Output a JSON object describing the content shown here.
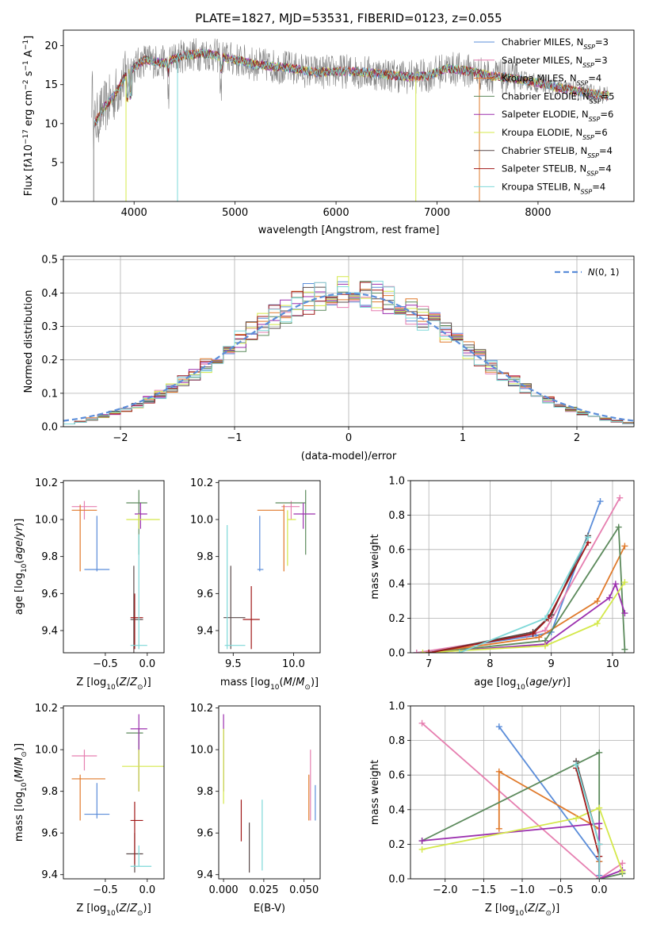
{
  "title": "PLATE=1827, MJD=53531, FIBERID=0123, z=0.055",
  "colors": {
    "Chabrier MILES": "#5b8dd9",
    "Salpeter MILES": "#e67fb0",
    "Kroupa MILES": "#e07a2b",
    "Chabrier ELODIE": "#5c8a5c",
    "Salpeter ELODIE": "#9b2fae",
    "Kroupa ELODIE": "#d4e84a",
    "Chabrier STELIB": "#5a4a4a",
    "Salpeter STELIB": "#a01818",
    "Kroupa STELIB": "#7ed8d8",
    "data": "#808080",
    "normal": "#5b8dd9"
  },
  "chart_data": [
    {
      "id": "spectrum",
      "type": "line",
      "xlabel": "wavelength [Angstrom, rest frame]",
      "ylabel": "Flux [f",
      "xlim": [
        3300,
        8950
      ],
      "ylim": [
        0,
        22
      ],
      "xticks": [
        4000,
        5000,
        6000,
        7000,
        8000
      ],
      "yticks": [
        0,
        5,
        10,
        15,
        20
      ],
      "legend_position": "right",
      "legend": [
        {
          "name": "Chabrier MILES, N",
          "n": "=3"
        },
        {
          "name": "Salpeter MILES, N",
          "n": "=3"
        },
        {
          "name": "Kroupa MILES, N",
          "n": "=4"
        },
        {
          "name": "Chabrier ELODIE, N",
          "n": "=5"
        },
        {
          "name": "Salpeter ELODIE, N",
          "n": "=6"
        },
        {
          "name": "Kroupa ELODIE, N",
          "n": "=6"
        },
        {
          "name": "Chabrier STELIB, N",
          "n": "=4"
        },
        {
          "name": "Salpeter STELIB, N",
          "n": "=4"
        },
        {
          "name": "Kroupa STELIB, N",
          "n": "=4"
        }
      ],
      "model_continuum": [
        [
          3600,
          9.8
        ],
        [
          3700,
          12
        ],
        [
          3800,
          13.5
        ],
        [
          3900,
          15.8
        ],
        [
          4000,
          17.2
        ],
        [
          4100,
          18.2
        ],
        [
          4300,
          17.8
        ],
        [
          4500,
          18.8
        ],
        [
          4700,
          19
        ],
        [
          5000,
          18.2
        ],
        [
          5200,
          17.6
        ],
        [
          5500,
          17.2
        ],
        [
          5800,
          16.6
        ],
        [
          6000,
          16.7
        ],
        [
          6200,
          16.7
        ],
        [
          6500,
          16.3
        ],
        [
          6700,
          16.0
        ],
        [
          6900,
          16.1
        ],
        [
          7100,
          17.1
        ],
        [
          7300,
          16.8
        ],
        [
          7500,
          16.2
        ],
        [
          7700,
          15.9
        ],
        [
          8000,
          15.2
        ],
        [
          8300,
          14.4
        ],
        [
          8500,
          13.9
        ],
        [
          8700,
          13.6
        ]
      ]
    },
    {
      "id": "residuals",
      "type": "line",
      "xlabel": "(data-model)/error",
      "ylabel": "Normed distribution",
      "xlim": [
        -2.5,
        2.5
      ],
      "ylim": [
        0,
        0.51
      ],
      "xticks": [
        -2,
        -1,
        0,
        1,
        2
      ],
      "yticks": [
        0.0,
        0.1,
        0.2,
        0.3,
        0.4,
        0.5
      ],
      "legend": "N(0,1)",
      "grid": true
    },
    {
      "id": "age_vs_Z",
      "type": "scatter",
      "xlabel": "Z [log",
      "ylabel": "age  [log",
      "xlim": [
        -1.0,
        0.2
      ],
      "ylim": [
        9.28,
        10.21
      ],
      "xticks": [
        -0.5,
        0.0
      ],
      "yticks": [
        9.4,
        9.6,
        9.8,
        10.0,
        10.2
      ],
      "points": [
        {
          "model": "Chabrier MILES",
          "x": -0.6,
          "y": 9.73,
          "ex": [
            -0.75,
            -0.45
          ],
          "ey": [
            9.72,
            10.02
          ]
        },
        {
          "model": "Salpeter MILES",
          "x": -0.75,
          "y": 10.07,
          "ex": [
            -0.9,
            -0.6
          ],
          "ey": [
            10.0,
            10.1
          ]
        },
        {
          "model": "Kroupa MILES",
          "x": -0.8,
          "y": 10.05,
          "ex": [
            -0.9,
            -0.6
          ],
          "ey": [
            9.72,
            10.08
          ]
        },
        {
          "model": "Chabrier ELODIE",
          "x": -0.1,
          "y": 10.09,
          "ex": [
            -0.25,
            -0.0
          ],
          "ey": [
            9.81,
            10.16
          ]
        },
        {
          "model": "Salpeter ELODIE",
          "x": -0.08,
          "y": 10.03,
          "ex": [
            -0.15,
            0.0
          ],
          "ey": [
            9.95,
            10.09
          ]
        },
        {
          "model": "Kroupa ELODIE",
          "x": -0.1,
          "y": 10.0,
          "ex": [
            -0.25,
            0.15
          ],
          "ey": [
            9.95,
            10.03
          ]
        },
        {
          "model": "Chabrier STELIB",
          "x": -0.16,
          "y": 9.46,
          "ex": [
            -0.2,
            -0.05
          ],
          "ey": [
            9.28,
            9.75
          ]
        },
        {
          "model": "Salpeter STELIB",
          "x": -0.15,
          "y": 9.47,
          "ex": [
            -0.2,
            -0.05
          ],
          "ey": [
            9.3,
            9.6
          ]
        },
        {
          "model": "Kroupa STELIB",
          "x": -0.1,
          "y": 9.32,
          "ex": [
            -0.2,
            0.0
          ],
          "ey": [
            9.3,
            9.92
          ]
        }
      ]
    },
    {
      "id": "age_vs_mass",
      "type": "scatter",
      "xlabel": "mass [log",
      "ylabel": "",
      "xlim": [
        9.38,
        10.22
      ],
      "ylim": [
        9.28,
        10.21
      ],
      "xticks": [
        9.5,
        10.0
      ],
      "yticks": [
        9.4,
        9.6,
        9.8,
        10.0,
        10.2
      ],
      "points": [
        {
          "model": "Chabrier MILES",
          "x": 9.72,
          "y": 9.73,
          "ex": [
            9.7,
            9.75
          ],
          "ey": [
            9.72,
            10.02
          ]
        },
        {
          "model": "Salpeter MILES",
          "x": 9.98,
          "y": 10.07,
          "ex": [
            9.9,
            10.05
          ],
          "ey": [
            10.0,
            10.1
          ]
        },
        {
          "model": "Kroupa MILES",
          "x": 9.92,
          "y": 10.05,
          "ex": [
            9.7,
            9.92
          ],
          "ey": [
            9.72,
            10.08
          ]
        },
        {
          "model": "Chabrier ELODIE",
          "x": 10.1,
          "y": 10.09,
          "ex": [
            9.85,
            10.1
          ],
          "ey": [
            9.81,
            10.16
          ]
        },
        {
          "model": "Salpeter ELODIE",
          "x": 10.08,
          "y": 10.03,
          "ex": [
            10.0,
            10.18
          ],
          "ey": [
            9.95,
            10.09
          ]
        },
        {
          "model": "Kroupa ELODIE",
          "x": 9.95,
          "y": 10.0,
          "ex": [
            9.95,
            10.02
          ],
          "ey": [
            9.75,
            10.05
          ]
        },
        {
          "model": "Chabrier STELIB",
          "x": 9.48,
          "y": 9.47,
          "ex": [
            9.42,
            9.6
          ],
          "ey": [
            9.3,
            9.75
          ]
        },
        {
          "model": "Salpeter STELIB",
          "x": 9.65,
          "y": 9.46,
          "ex": [
            9.58,
            9.72
          ],
          "ey": [
            9.3,
            9.64
          ]
        },
        {
          "model": "Kroupa STELIB",
          "x": 9.45,
          "y": 9.32,
          "ex": [
            9.43,
            9.6
          ],
          "ey": [
            9.3,
            9.97
          ]
        }
      ]
    },
    {
      "id": "weight_vs_age",
      "type": "line",
      "xlabel": "age  [log",
      "ylabel": "mass weight",
      "xlim": [
        6.7,
        10.35
      ],
      "ylim": [
        0,
        1.0
      ],
      "xticks": [
        7,
        8,
        9,
        10
      ],
      "yticks": [
        0.0,
        0.2,
        0.4,
        0.6,
        0.8,
        1.0
      ],
      "grid": true,
      "series": [
        {
          "name": "Chabrier MILES",
          "x": [
            6.8,
            8.75,
            9.0,
            9.8
          ],
          "y": [
            0.0,
            0.1,
            0.12,
            0.88
          ]
        },
        {
          "name": "Salpeter MILES",
          "x": [
            6.8,
            8.6,
            8.9,
            10.12
          ],
          "y": [
            0.0,
            0.1,
            0.13,
            0.9
          ]
        },
        {
          "name": "Kroupa MILES",
          "x": [
            7.0,
            8.8,
            9.75,
            10.2
          ],
          "y": [
            0.0,
            0.09,
            0.3,
            0.62
          ]
        },
        {
          "name": "Chabrier ELODIE",
          "x": [
            7.0,
            8.9,
            10.1,
            10.2
          ],
          "y": [
            0.0,
            0.07,
            0.73,
            0.02
          ]
        },
        {
          "name": "Salpeter ELODIE",
          "x": [
            7.0,
            8.9,
            9.95,
            10.05,
            10.2
          ],
          "y": [
            0.0,
            0.05,
            0.32,
            0.4,
            0.23
          ]
        },
        {
          "name": "Kroupa ELODIE",
          "x": [
            6.9,
            8.9,
            9.75,
            10.2
          ],
          "y": [
            0.0,
            0.04,
            0.17,
            0.41
          ]
        },
        {
          "name": "Chabrier STELIB",
          "x": [
            7.0,
            8.7,
            9.0,
            9.6
          ],
          "y": [
            0.0,
            0.12,
            0.22,
            0.68
          ]
        },
        {
          "name": "Salpeter STELIB",
          "x": [
            7.0,
            8.7,
            8.95,
            9.6
          ],
          "y": [
            0.0,
            0.11,
            0.2,
            0.64
          ]
        },
        {
          "name": "Kroupa STELIB",
          "x": [
            7.5,
            8.9,
            9.6
          ],
          "y": [
            0.0,
            0.2,
            0.67
          ]
        }
      ]
    },
    {
      "id": "mass_vs_Z",
      "type": "scatter",
      "xlabel": "Z [log",
      "ylabel": "mass [log",
      "xlim": [
        -1.0,
        0.2
      ],
      "ylim": [
        9.38,
        10.21
      ],
      "xticks": [
        -0.5,
        0.0
      ],
      "yticks": [
        9.4,
        9.6,
        9.8,
        10.0,
        10.2
      ],
      "points": [
        {
          "model": "Chabrier MILES",
          "x": -0.6,
          "y": 9.69,
          "ex": [
            -0.75,
            -0.45
          ],
          "ey": [
            9.67,
            9.84
          ]
        },
        {
          "model": "Salpeter MILES",
          "x": -0.75,
          "y": 9.97,
          "ex": [
            -0.9,
            -0.6
          ],
          "ey": [
            9.9,
            10.0
          ]
        },
        {
          "model": "Kroupa MILES",
          "x": -0.8,
          "y": 9.86,
          "ex": [
            -0.9,
            -0.5
          ],
          "ey": [
            9.66,
            9.88
          ]
        },
        {
          "model": "Chabrier ELODIE",
          "x": -0.1,
          "y": 10.08,
          "ex": [
            -0.25,
            -0.05
          ],
          "ey": [
            9.8,
            10.1
          ]
        },
        {
          "model": "Salpeter ELODIE",
          "x": -0.1,
          "y": 10.1,
          "ex": [
            -0.2,
            0.0
          ],
          "ey": [
            9.8,
            10.17
          ]
        },
        {
          "model": "Kroupa ELODIE",
          "x": -0.1,
          "y": 9.92,
          "ex": [
            -0.3,
            0.2
          ],
          "ey": [
            9.8,
            10.0
          ]
        },
        {
          "model": "Chabrier STELIB",
          "x": -0.15,
          "y": 9.5,
          "ex": [
            -0.25,
            -0.05
          ],
          "ey": [
            9.41,
            9.6
          ]
        },
        {
          "model": "Salpeter STELIB",
          "x": -0.15,
          "y": 9.66,
          "ex": [
            -0.2,
            -0.05
          ],
          "ey": [
            9.45,
            9.75
          ]
        },
        {
          "model": "Kroupa STELIB",
          "x": -0.1,
          "y": 9.44,
          "ex": [
            -0.2,
            0.05
          ],
          "ey": [
            9.44,
            9.54
          ]
        }
      ]
    },
    {
      "id": "mass_vs_EBV",
      "type": "scatter",
      "xlabel": "E(B-V)",
      "ylabel": "",
      "xlim": [
        -0.003,
        0.06
      ],
      "ylim": [
        9.38,
        10.21
      ],
      "xticks": [
        0.0,
        0.025,
        0.05
      ],
      "xticklabels": [
        "0.000",
        "0.025",
        "0.050"
      ],
      "yticks": [
        9.4,
        9.6,
        9.8,
        10.0,
        10.2
      ],
      "points": [
        {
          "model": "Chabrier MILES",
          "x": 0.057,
          "y": 9.74,
          "ey": [
            9.66,
            9.83
          ]
        },
        {
          "model": "Salpeter MILES",
          "x": 0.054,
          "y": 9.87,
          "ey": [
            9.66,
            10.0
          ]
        },
        {
          "model": "Kroupa MILES",
          "x": 0.053,
          "y": 9.75,
          "ey": [
            9.66,
            9.88
          ]
        },
        {
          "model": "Chabrier ELODIE",
          "x": 0.0,
          "y": 10.0,
          "ey": [
            9.8,
            10.1
          ]
        },
        {
          "model": "Salpeter ELODIE",
          "x": 0.0,
          "y": 10.05,
          "ey": [
            9.8,
            10.17
          ]
        },
        {
          "model": "Kroupa ELODIE",
          "x": 0.0,
          "y": 9.92,
          "ey": [
            9.74,
            10.1
          ]
        },
        {
          "model": "Chabrier STELIB",
          "x": 0.016,
          "y": 9.5,
          "ey": [
            9.41,
            9.65
          ]
        },
        {
          "model": "Salpeter STELIB",
          "x": 0.011,
          "y": 9.66,
          "ey": [
            9.56,
            9.76
          ]
        },
        {
          "model": "Kroupa STELIB",
          "x": 0.024,
          "y": 9.6,
          "ey": [
            9.42,
            9.76
          ]
        }
      ]
    },
    {
      "id": "weight_vs_Z",
      "type": "line",
      "xlabel": "Z [log",
      "ylabel": "mass weight",
      "xlim": [
        -2.45,
        0.45
      ],
      "ylim": [
        0,
        1.0
      ],
      "xticks": [
        -2.0,
        -1.5,
        -1.0,
        -0.5,
        0.0
      ],
      "yticks": [
        0.0,
        0.2,
        0.4,
        0.6,
        0.8,
        1.0
      ],
      "grid": true,
      "series": [
        {
          "name": "Chabrier MILES",
          "x": [
            -1.3,
            0.0,
            0.0
          ],
          "y": [
            0.88,
            0.1,
            0.02
          ]
        },
        {
          "name": "Salpeter MILES",
          "x": [
            -2.3,
            0.0,
            0.3
          ],
          "y": [
            0.9,
            0.0,
            0.09
          ]
        },
        {
          "name": "Kroupa MILES",
          "x": [
            -1.3,
            -1.3,
            0.0,
            0.0
          ],
          "y": [
            0.29,
            0.62,
            0.29,
            0.1
          ]
        },
        {
          "name": "Chabrier ELODIE",
          "x": [
            -2.3,
            0.0,
            0.0,
            0.3
          ],
          "y": [
            0.22,
            0.73,
            0.0,
            0.03
          ]
        },
        {
          "name": "Salpeter ELODIE",
          "x": [
            -2.3,
            0.0,
            0.0,
            0.3
          ],
          "y": [
            0.22,
            0.32,
            0.0,
            0.05
          ]
        },
        {
          "name": "Kroupa ELODIE",
          "x": [
            -2.3,
            -0.3,
            0.0,
            0.3
          ],
          "y": [
            0.17,
            0.35,
            0.41,
            0.04
          ]
        },
        {
          "name": "Chabrier STELIB",
          "x": [
            -0.3,
            0.0,
            0.0
          ],
          "y": [
            0.68,
            0.2,
            0.0
          ]
        },
        {
          "name": "Salpeter STELIB",
          "x": [
            -0.3,
            0.0,
            0.0
          ],
          "y": [
            0.64,
            0.13,
            0.0
          ]
        },
        {
          "name": "Kroupa STELIB",
          "x": [
            -0.3,
            0.0,
            0.0
          ],
          "y": [
            0.66,
            0.2,
            0.0
          ]
        }
      ]
    }
  ]
}
